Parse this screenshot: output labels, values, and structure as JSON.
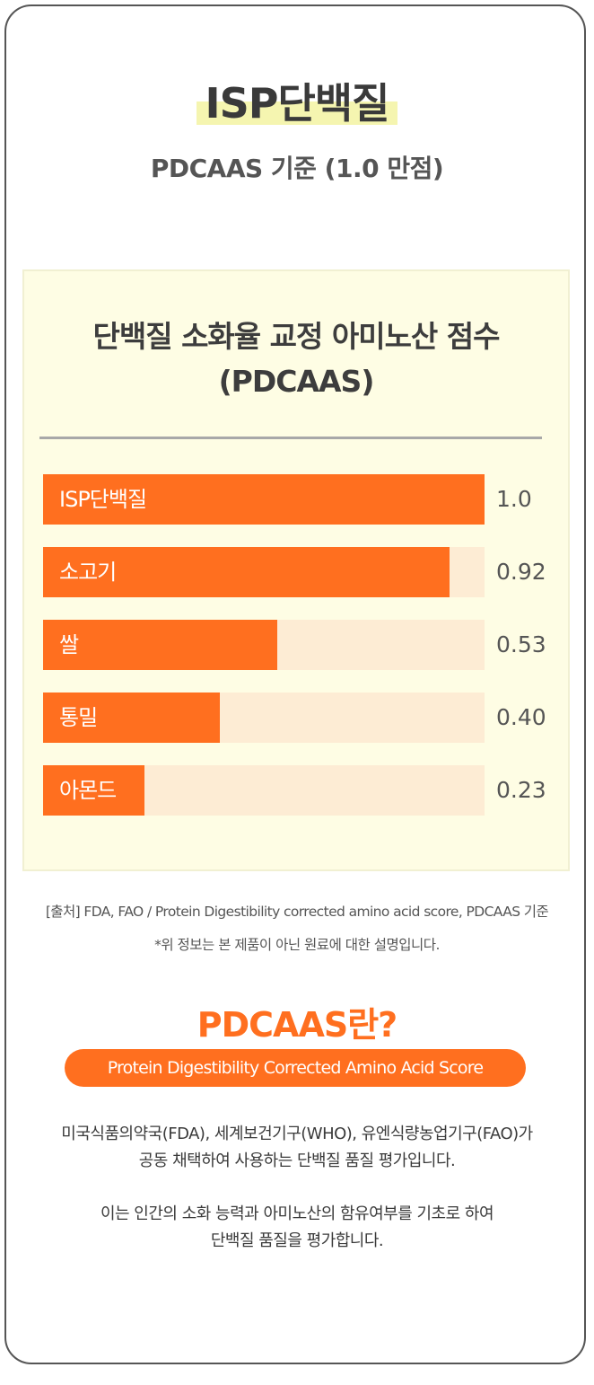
{
  "header": {
    "title": "ISP단백질",
    "subtitle": "PDCAAS 기준 (1.0 만점)"
  },
  "chart_data": {
    "type": "bar",
    "orientation": "horizontal",
    "title_line1": "단백질 소화율 교정 아미노산 점수",
    "title_line2": "(PDCAAS)",
    "categories": [
      "ISP단백질",
      "소고기",
      "쌀",
      "통밀",
      "아몬드"
    ],
    "values": [
      1.0,
      0.92,
      0.53,
      0.4,
      0.23
    ],
    "value_labels": [
      "1.0",
      "0.92",
      "0.53",
      "0.40",
      "0.23"
    ],
    "xlim": [
      0,
      1.0
    ],
    "colors": {
      "bar": "#ff6f1f",
      "track": "#fdecd4"
    }
  },
  "footnotes": {
    "source": "[출처] FDA, FAO / Protein Digestibility corrected amino acid score, PDCAAS 기준",
    "note": "*위 정보는 본 제품이 아닌 원료에 대한 설명입니다."
  },
  "definition": {
    "title": "PDCAAS란?",
    "full_name": "Protein Digestibility Corrected Amino Acid Score",
    "para1_line1": "미국식품의약국(FDA), 세계보건기구(WHO), 유엔식량농업기구(FAO)가",
    "para1_line2": "공동 채택하여 사용하는 단백질 품질 평가입니다.",
    "para2_line1": "이는 인간의 소화 능력과 아미노산의 함유여부를 기초로 하여",
    "para2_line2": "단백질 품질을 평가합니다."
  }
}
